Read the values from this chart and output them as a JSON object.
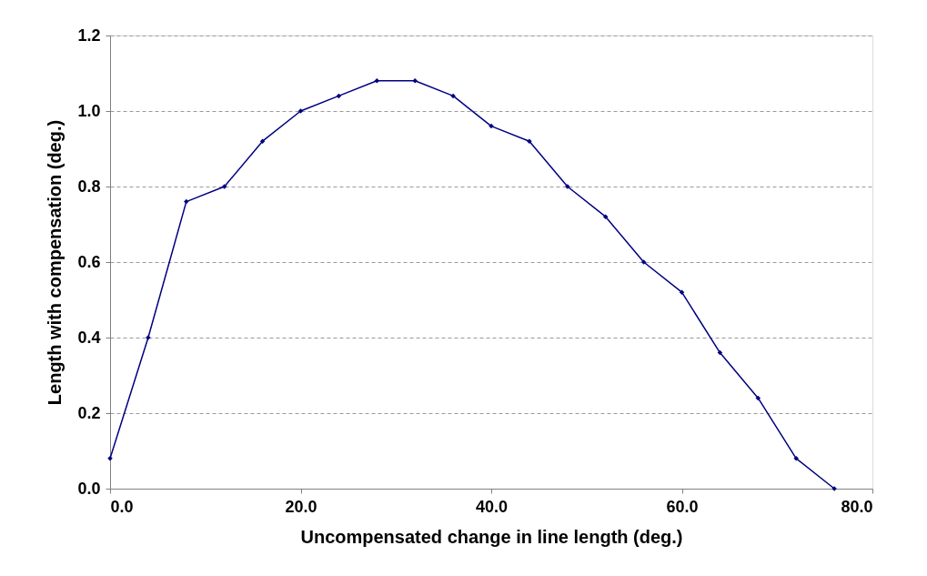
{
  "chart_data": {
    "type": "line",
    "xlabel": "Uncompensated change in line length (deg.)",
    "ylabel": "Length with compensation (deg.)",
    "x": [
      0,
      4,
      8,
      12,
      16,
      20,
      24,
      28,
      32,
      36,
      40,
      44,
      48,
      52,
      56,
      60,
      64,
      68,
      72,
      76
    ],
    "series": [
      {
        "color": "#000080",
        "values": [
          0.08,
          0.4,
          0.76,
          0.8,
          0.92,
          1.0,
          1.04,
          1.08,
          1.08,
          1.04,
          0.96,
          0.92,
          0.8,
          0.72,
          0.6,
          0.52,
          0.36,
          0.24,
          0.08,
          0.0
        ]
      }
    ],
    "xlim": [
      0,
      80
    ],
    "xticks": [
      {
        "value": 0,
        "label": "0.0"
      },
      {
        "value": 20,
        "label": "20.0"
      },
      {
        "value": 40,
        "label": "40.0"
      },
      {
        "value": 60,
        "label": "60.0"
      },
      {
        "value": 80,
        "label": "80.0"
      }
    ],
    "ylim": [
      0,
      1.2
    ],
    "yticks": [
      {
        "value": 0,
        "label": "0.0"
      },
      {
        "value": 0.2,
        "label": "0.2"
      },
      {
        "value": 0.4,
        "label": "0.4"
      },
      {
        "value": 0.6,
        "label": "0.6"
      },
      {
        "value": 0.8,
        "label": "0.8"
      },
      {
        "value": 1.0,
        "label": "1.0"
      },
      {
        "value": 1.2,
        "label": "1.2"
      }
    ],
    "grid": "y",
    "marker": "diamond",
    "line_style": "solid"
  }
}
